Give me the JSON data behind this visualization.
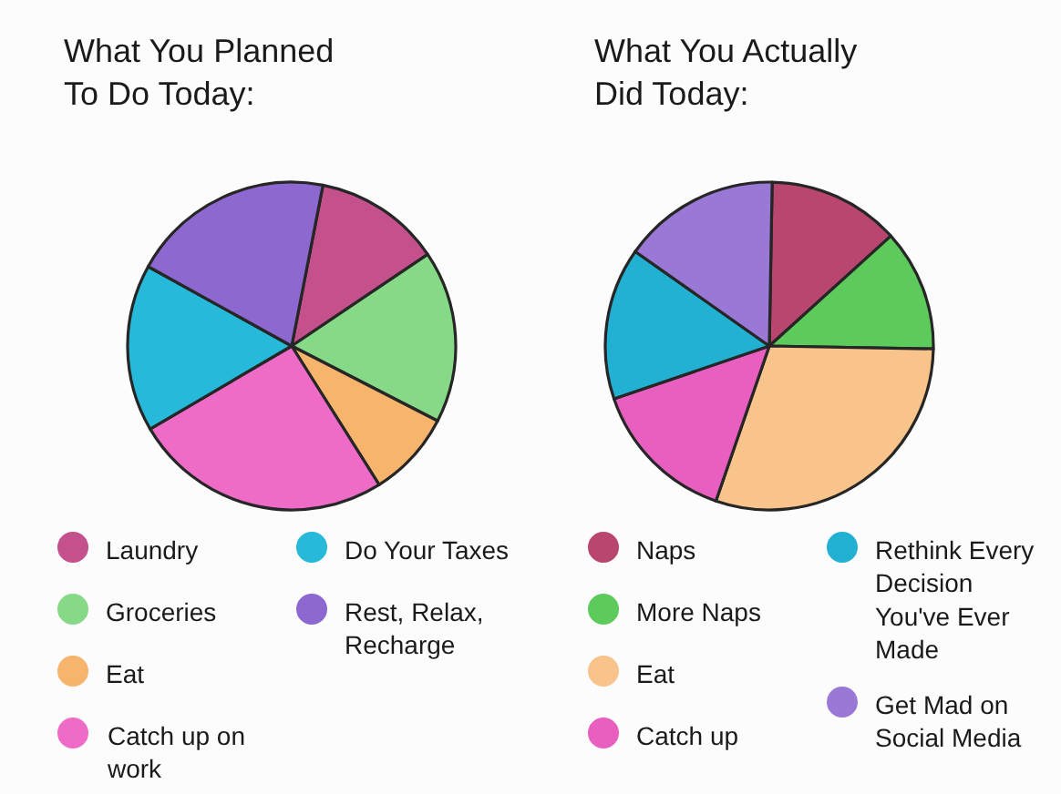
{
  "chart_data": [
    {
      "type": "pie",
      "title": "What You Planned To Do Today:",
      "categories": [
        "Laundry",
        "Groceries",
        "Eat",
        "Catch up on work",
        "Do Your Taxes",
        "Rest, Relax, Recharge"
      ],
      "values": [
        12.5,
        17,
        8.5,
        25.5,
        16.5,
        20
      ],
      "colors": [
        "#c4508c",
        "#86d986",
        "#f6b46c",
        "#ee6cc8",
        "#26b9d9",
        "#8d68d0"
      ],
      "legend": "bottom"
    },
    {
      "type": "pie",
      "title": "What You Actually Did Today:",
      "categories": [
        "Naps",
        "More Naps",
        "Eat",
        "Catch up",
        "Rethink Every Decision You've Ever Made",
        "Get Mad on Social Media"
      ],
      "values": [
        13,
        12,
        30,
        14.5,
        15,
        15.5
      ],
      "colors": [
        "#b8466f",
        "#5ccb5c",
        "#f8c48c",
        "#e95fc0",
        "#22b1d2",
        "#9a78d6"
      ],
      "legend": "bottom"
    }
  ]
}
